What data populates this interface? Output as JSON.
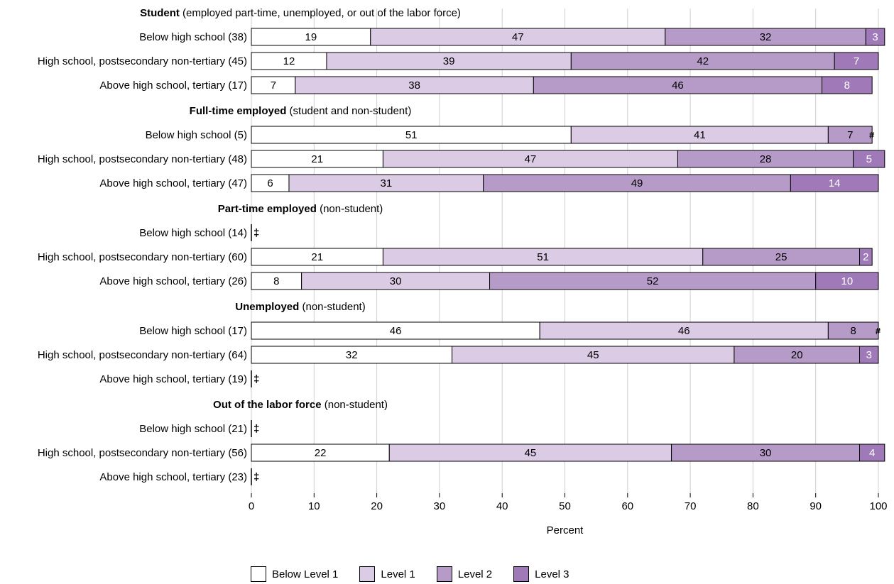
{
  "chart_data": {
    "type": "bar",
    "orientation": "horizontal",
    "stacked": true,
    "xlabel": "Percent",
    "xlim": [
      0,
      100
    ],
    "xticks": [
      0,
      10,
      20,
      30,
      40,
      50,
      60,
      70,
      80,
      90,
      100
    ],
    "grid": true,
    "legend_placement": "bottom",
    "reporting_standards_symbol": "‡",
    "rounds_to_zero_symbol": "#",
    "series": [
      {
        "name": "Below Level 1",
        "color": "#ffffff",
        "label_color": "#000000"
      },
      {
        "name": "Level 1",
        "color": "#dccbe5",
        "label_color": "#000000"
      },
      {
        "name": "Level 2",
        "color": "#b69bc9",
        "label_color": "#000000"
      },
      {
        "name": "Level 3",
        "color": "#a07ab8",
        "label_color": "#ffffff"
      }
    ],
    "groups": [
      {
        "title_bold": "Student",
        "title_rest": " (employed part-time, unemployed, or out of the labor force)",
        "rows": [
          {
            "label": "Below high school (38)",
            "values": [
              19,
              47,
              32,
              3
            ]
          },
          {
            "label": "High school, postsecondary non-tertiary (45)",
            "values": [
              12,
              39,
              42,
              7
            ]
          },
          {
            "label": "Above high school, tertiary (17)",
            "values": [
              7,
              38,
              46,
              8
            ]
          }
        ]
      },
      {
        "title_bold": "Full-time employed",
        "title_rest": " (student and non-student)",
        "rows": [
          {
            "label": "Below high school   (5)",
            "values": [
              51,
              41,
              7,
              0
            ],
            "tiny_labels": [
              null,
              null,
              null,
              "#"
            ]
          },
          {
            "label": "High school, postsecondary non-tertiary (48)",
            "values": [
              21,
              47,
              28,
              5
            ]
          },
          {
            "label": "Above high school, tertiary (47)",
            "values": [
              6,
              31,
              49,
              14
            ]
          }
        ]
      },
      {
        "title_bold": "Part-time employed",
        "title_rest": " (non-student)",
        "rows": [
          {
            "label": "Below high school (14)",
            "values": null,
            "note": "‡"
          },
          {
            "label": "High school, postsecondary non-tertiary (60)",
            "values": [
              21,
              51,
              25,
              2
            ]
          },
          {
            "label": "Above high school, tertiary (26)",
            "values": [
              8,
              30,
              52,
              10
            ]
          }
        ]
      },
      {
        "title_bold": "Unemployed",
        "title_rest": " (non-student)",
        "rows": [
          {
            "label": "Below high school (17)",
            "values": [
              46,
              46,
              8,
              0
            ],
            "tiny_labels": [
              null,
              null,
              null,
              "#"
            ]
          },
          {
            "label": "High school, postsecondary non-tertiary (64)",
            "values": [
              32,
              45,
              20,
              3
            ]
          },
          {
            "label": "Above high school, tertiary (19)",
            "values": null,
            "note": "‡"
          }
        ]
      },
      {
        "title_bold": "Out of the labor force",
        "title_rest": " (non-student)",
        "rows": [
          {
            "label": "Below high school (21)",
            "values": null,
            "note": "‡"
          },
          {
            "label": "High school, postsecondary non-tertiary (56)",
            "values": [
              22,
              45,
              30,
              4
            ]
          },
          {
            "label": "Above high school, tertiary (23)",
            "values": null,
            "note": "‡"
          }
        ]
      }
    ]
  }
}
